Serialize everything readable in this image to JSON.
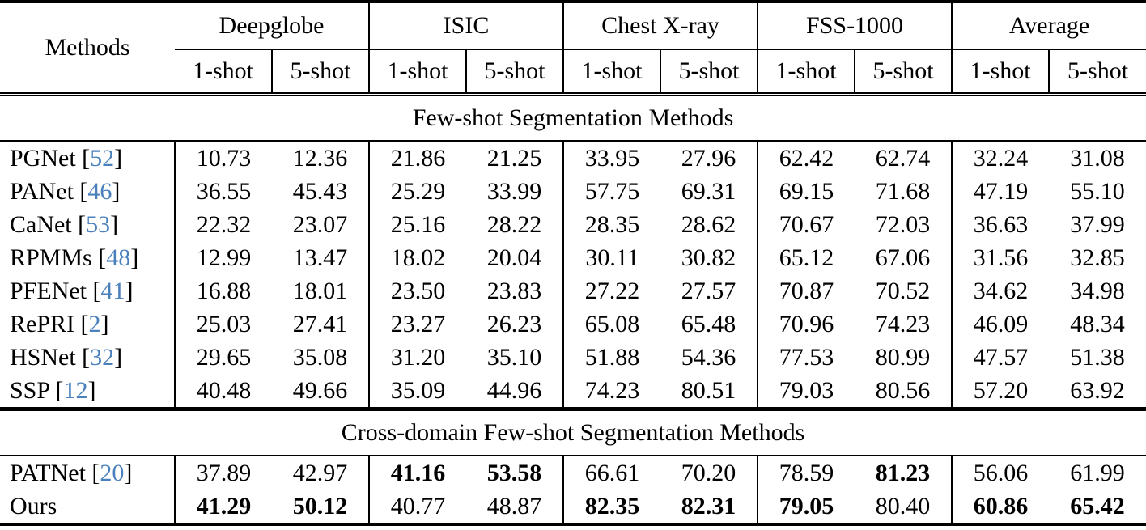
{
  "table": {
    "methods_header": "Methods",
    "citation_color": "#4a80bc",
    "groups": [
      {
        "label": "Deepglobe"
      },
      {
        "label": "ISIC"
      },
      {
        "label": "Chest X-ray"
      },
      {
        "label": "FSS-1000"
      },
      {
        "label": "Average"
      }
    ],
    "shot_labels": [
      "1-shot",
      "5-shot"
    ],
    "sections": [
      {
        "title": "Few-shot Segmentation Methods",
        "rows": [
          {
            "method": "PGNet",
            "cite_num": "52",
            "values": [
              "10.73",
              "12.36",
              "21.86",
              "21.25",
              "33.95",
              "27.96",
              "62.42",
              "62.74",
              "32.24",
              "31.08"
            ],
            "bold": [
              false,
              false,
              false,
              false,
              false,
              false,
              false,
              false,
              false,
              false
            ]
          },
          {
            "method": "PANet",
            "cite_num": "46",
            "values": [
              "36.55",
              "45.43",
              "25.29",
              "33.99",
              "57.75",
              "69.31",
              "69.15",
              "71.68",
              "47.19",
              "55.10"
            ],
            "bold": [
              false,
              false,
              false,
              false,
              false,
              false,
              false,
              false,
              false,
              false
            ]
          },
          {
            "method": "CaNet",
            "cite_num": "53",
            "values": [
              "22.32",
              "23.07",
              "25.16",
              "28.22",
              "28.35",
              "28.62",
              "70.67",
              "72.03",
              "36.63",
              "37.99"
            ],
            "bold": [
              false,
              false,
              false,
              false,
              false,
              false,
              false,
              false,
              false,
              false
            ]
          },
          {
            "method": "RPMMs",
            "cite_num": "48",
            "values": [
              "12.99",
              "13.47",
              "18.02",
              "20.04",
              "30.11",
              "30.82",
              "65.12",
              "67.06",
              "31.56",
              "32.85"
            ],
            "bold": [
              false,
              false,
              false,
              false,
              false,
              false,
              false,
              false,
              false,
              false
            ]
          },
          {
            "method": "PFENet",
            "cite_num": "41",
            "values": [
              "16.88",
              "18.01",
              "23.50",
              "23.83",
              "27.22",
              "27.57",
              "70.87",
              "70.52",
              "34.62",
              "34.98"
            ],
            "bold": [
              false,
              false,
              false,
              false,
              false,
              false,
              false,
              false,
              false,
              false
            ]
          },
          {
            "method": "RePRI",
            "cite_num": "2",
            "values": [
              "25.03",
              "27.41",
              "23.27",
              "26.23",
              "65.08",
              "65.48",
              "70.96",
              "74.23",
              "46.09",
              "48.34"
            ],
            "bold": [
              false,
              false,
              false,
              false,
              false,
              false,
              false,
              false,
              false,
              false
            ]
          },
          {
            "method": "HSNet",
            "cite_num": "32",
            "values": [
              "29.65",
              "35.08",
              "31.20",
              "35.10",
              "51.88",
              "54.36",
              "77.53",
              "80.99",
              "47.57",
              "51.38"
            ],
            "bold": [
              false,
              false,
              false,
              false,
              false,
              false,
              false,
              false,
              false,
              false
            ]
          },
          {
            "method": "SSP",
            "cite_num": "12",
            "values": [
              "40.48",
              "49.66",
              "35.09",
              "44.96",
              "74.23",
              "80.51",
              "79.03",
              "80.56",
              "57.20",
              "63.92"
            ],
            "bold": [
              false,
              false,
              false,
              false,
              false,
              false,
              false,
              false,
              false,
              false
            ]
          }
        ]
      },
      {
        "title": "Cross-domain Few-shot Segmentation Methods",
        "rows": [
          {
            "method": "PATNet",
            "cite_num": "20",
            "values": [
              "37.89",
              "42.97",
              "41.16",
              "53.58",
              "66.61",
              "70.20",
              "78.59",
              "81.23",
              "56.06",
              "61.99"
            ],
            "bold": [
              false,
              false,
              true,
              true,
              false,
              false,
              false,
              true,
              false,
              false
            ]
          },
          {
            "method": "Ours",
            "cite_num": null,
            "values": [
              "41.29",
              "50.12",
              "40.77",
              "48.87",
              "82.35",
              "82.31",
              "79.05",
              "80.40",
              "60.86",
              "65.42"
            ],
            "bold": [
              true,
              true,
              false,
              false,
              true,
              true,
              true,
              false,
              true,
              true
            ]
          }
        ]
      }
    ]
  }
}
